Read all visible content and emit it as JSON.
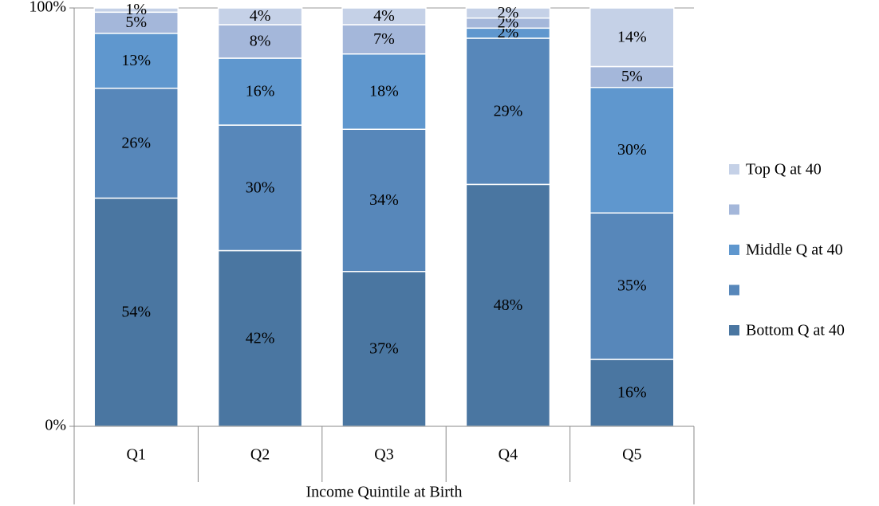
{
  "chart_data": {
    "type": "stacked_bar",
    "stacking": "percent",
    "x_label": "Income Quintile at Birth",
    "categories": [
      "Q1",
      "Q2",
      "Q3",
      "Q4",
      "Q5"
    ],
    "series": [
      {
        "name": "Bottom Q at 40",
        "color": "#4a76a1",
        "values": [
          54,
          42,
          37,
          48,
          16
        ],
        "value_labels": [
          "54%",
          "42%",
          "37%",
          "48%",
          "16%"
        ]
      },
      {
        "name": null,
        "color": "#5787ba",
        "values": [
          26,
          30,
          34,
          29,
          35
        ],
        "value_labels": [
          "26%",
          "30%",
          "34%",
          "29%",
          "35%"
        ]
      },
      {
        "name": "Middle Q at 40",
        "color": "#5f97ce",
        "values": [
          13,
          16,
          18,
          2,
          30
        ],
        "value_labels": [
          "13%",
          "16%",
          "18%",
          "2%",
          "30%"
        ]
      },
      {
        "name": null,
        "color": "#a4b7da",
        "values": [
          5,
          8,
          7,
          2,
          5
        ],
        "value_labels": [
          "5%",
          "8%",
          "7%",
          "2%",
          "5%"
        ]
      },
      {
        "name": "Top Q at 40",
        "color": "#c5d1e7",
        "values": [
          1,
          4,
          4,
          2,
          14
        ],
        "value_labels": [
          "1%",
          "4%",
          "4%",
          "2%",
          "14%"
        ]
      }
    ],
    "ylim": [
      0,
      100
    ],
    "yticks": [
      {
        "value": 0,
        "label": "0%"
      },
      {
        "value": 100,
        "label": "100%"
      }
    ],
    "legend": "right"
  }
}
